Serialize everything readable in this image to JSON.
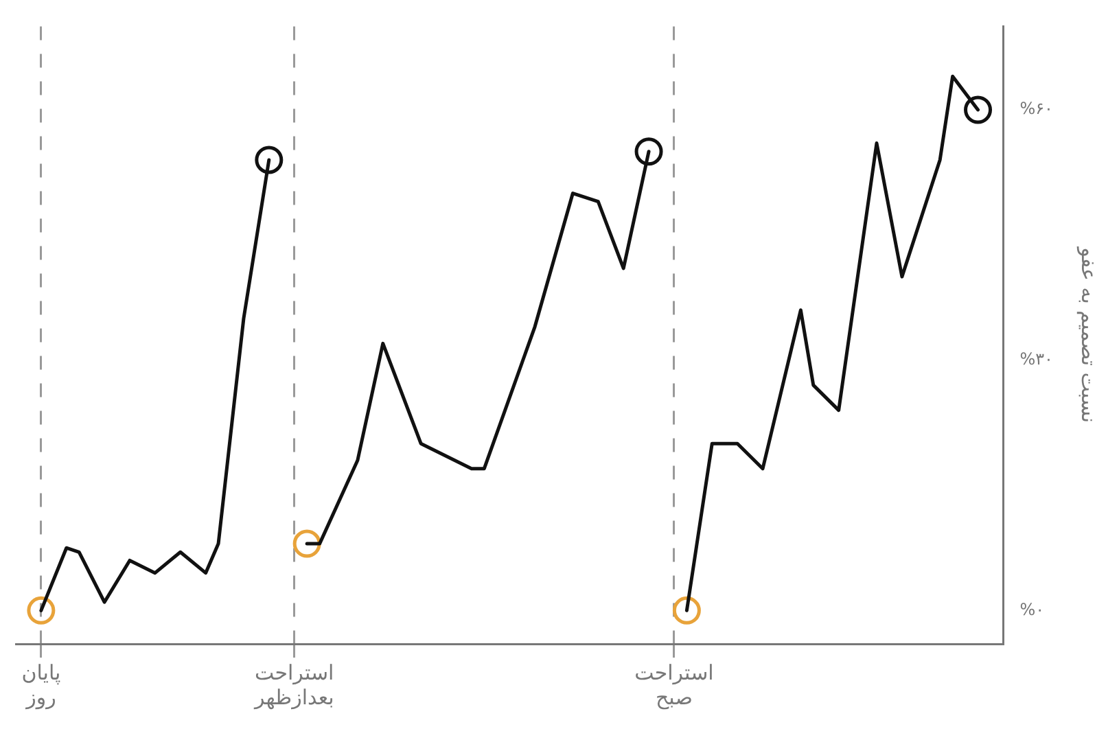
{
  "chart_data": {
    "type": "line",
    "ylabel": "نسبت تصمیم به عفو",
    "categories": [
      null,
      null,
      "پایان\nروز",
      null,
      null,
      null,
      null,
      null,
      null,
      null,
      null,
      null,
      null,
      null,
      null,
      null,
      null,
      null,
      null,
      null,
      null,
      null,
      "استراحت\nبعدازظهر",
      null,
      null,
      null,
      null,
      null,
      null,
      null,
      null,
      null,
      null,
      null,
      null,
      null,
      null,
      null,
      null,
      null,
      null,
      null,
      null,
      null,
      null,
      null,
      null,
      null,
      null,
      null,
      null,
      null,
      "استراحت\nصبح",
      null,
      null,
      null,
      null,
      null,
      null,
      null,
      null,
      null,
      null,
      null,
      null,
      null,
      null,
      null,
      null,
      null,
      null,
      null,
      null,
      null,
      null,
      null,
      null,
      null,
      null
    ],
    "series": [
      {
        "color": "#111111",
        "values": [
          null,
          null,
          0,
          null,
          7.5,
          7,
          null,
          1,
          null,
          6,
          null,
          4.5,
          null,
          7,
          null,
          4.5,
          8,
          null,
          35,
          null,
          54,
          null,
          null,
          null,
          null,
          null,
          null,
          null,
          null,
          null,
          null,
          null,
          null,
          null,
          null,
          null,
          null,
          null,
          null,
          null,
          null,
          null,
          null,
          null,
          null,
          null,
          null,
          null,
          null,
          null,
          null,
          null,
          null,
          null,
          null,
          null,
          null,
          null,
          null,
          null,
          null,
          null,
          null,
          null,
          null,
          null,
          null,
          null,
          null,
          null,
          null,
          null,
          null,
          null,
          null,
          null,
          null,
          null,
          null
        ]
      },
      {
        "color": "#111111",
        "values": [
          null,
          null,
          null,
          null,
          null,
          null,
          null,
          null,
          null,
          null,
          null,
          null,
          null,
          null,
          null,
          null,
          null,
          null,
          null,
          null,
          null,
          null,
          null,
          8,
          8,
          null,
          null,
          18,
          null,
          32,
          null,
          null,
          20,
          null,
          null,
          null,
          17,
          17,
          null,
          null,
          null,
          34,
          null,
          null,
          50,
          null,
          49,
          null,
          41,
          null,
          55,
          null,
          null,
          null,
          null,
          null,
          null,
          null,
          null,
          null,
          null,
          null,
          null,
          null,
          null,
          null,
          null,
          null,
          null,
          null,
          null,
          null,
          null,
          null,
          null,
          null,
          null,
          null,
          null
        ]
      },
      {
        "color": "#111111",
        "values": [
          null,
          null,
          null,
          null,
          null,
          null,
          null,
          null,
          null,
          null,
          null,
          null,
          null,
          null,
          null,
          null,
          null,
          null,
          null,
          null,
          null,
          null,
          null,
          null,
          null,
          null,
          null,
          null,
          null,
          null,
          null,
          null,
          null,
          null,
          null,
          null,
          null,
          null,
          null,
          null,
          null,
          null,
          null,
          null,
          null,
          null,
          null,
          null,
          null,
          null,
          null,
          null,
          null,
          0,
          null,
          20,
          null,
          20,
          null,
          17,
          null,
          null,
          36,
          27,
          null,
          24,
          null,
          null,
          56,
          null,
          40,
          null,
          null,
          54,
          64,
          null,
          60,
          null,
          null
        ]
      },
      {
        "type": "scatter",
        "marker": "circle",
        "color": "#e8a33a",
        "values": [
          null,
          null,
          0,
          null,
          null,
          null,
          null,
          null,
          null,
          null,
          null,
          null,
          null,
          null,
          null,
          null,
          null,
          null,
          null,
          null,
          null,
          null,
          null,
          8,
          null,
          null,
          null,
          null,
          null,
          null,
          null,
          null,
          null,
          null,
          null,
          null,
          null,
          null,
          null,
          null,
          null,
          null,
          null,
          null,
          null,
          null,
          null,
          null,
          null,
          null,
          null,
          null,
          null,
          0,
          null,
          null,
          null,
          null,
          null,
          null,
          null,
          null,
          null,
          null,
          null,
          null,
          null,
          null,
          null,
          null,
          null,
          null,
          null,
          null,
          null,
          null,
          null,
          null,
          null
        ]
      },
      {
        "type": "scatter",
        "marker": "circle",
        "color": "#111111",
        "values": [
          null,
          null,
          null,
          null,
          null,
          null,
          null,
          null,
          null,
          null,
          null,
          null,
          null,
          null,
          null,
          null,
          null,
          null,
          null,
          null,
          54,
          null,
          null,
          null,
          null,
          null,
          null,
          null,
          null,
          null,
          null,
          null,
          null,
          null,
          null,
          null,
          null,
          null,
          null,
          null,
          null,
          null,
          null,
          null,
          null,
          null,
          null,
          null,
          null,
          null,
          55,
          null,
          null,
          null,
          null,
          null,
          null,
          null,
          null,
          null,
          null,
          null,
          null,
          null,
          null,
          null,
          null,
          null,
          null,
          null,
          null,
          null,
          null,
          null,
          null,
          null,
          60,
          null,
          null
        ]
      }
    ],
    "ylim": [
      -4,
      70
    ],
    "yticks": [
      {
        "value": 0,
        "label": "%۰"
      },
      {
        "value": 30,
        "label": "%۳۰"
      },
      {
        "value": 60,
        "label": "%۶۰"
      }
    ],
    "grid": "x",
    "marker": "none",
    "line_style": "solid",
    "legend": false
  }
}
